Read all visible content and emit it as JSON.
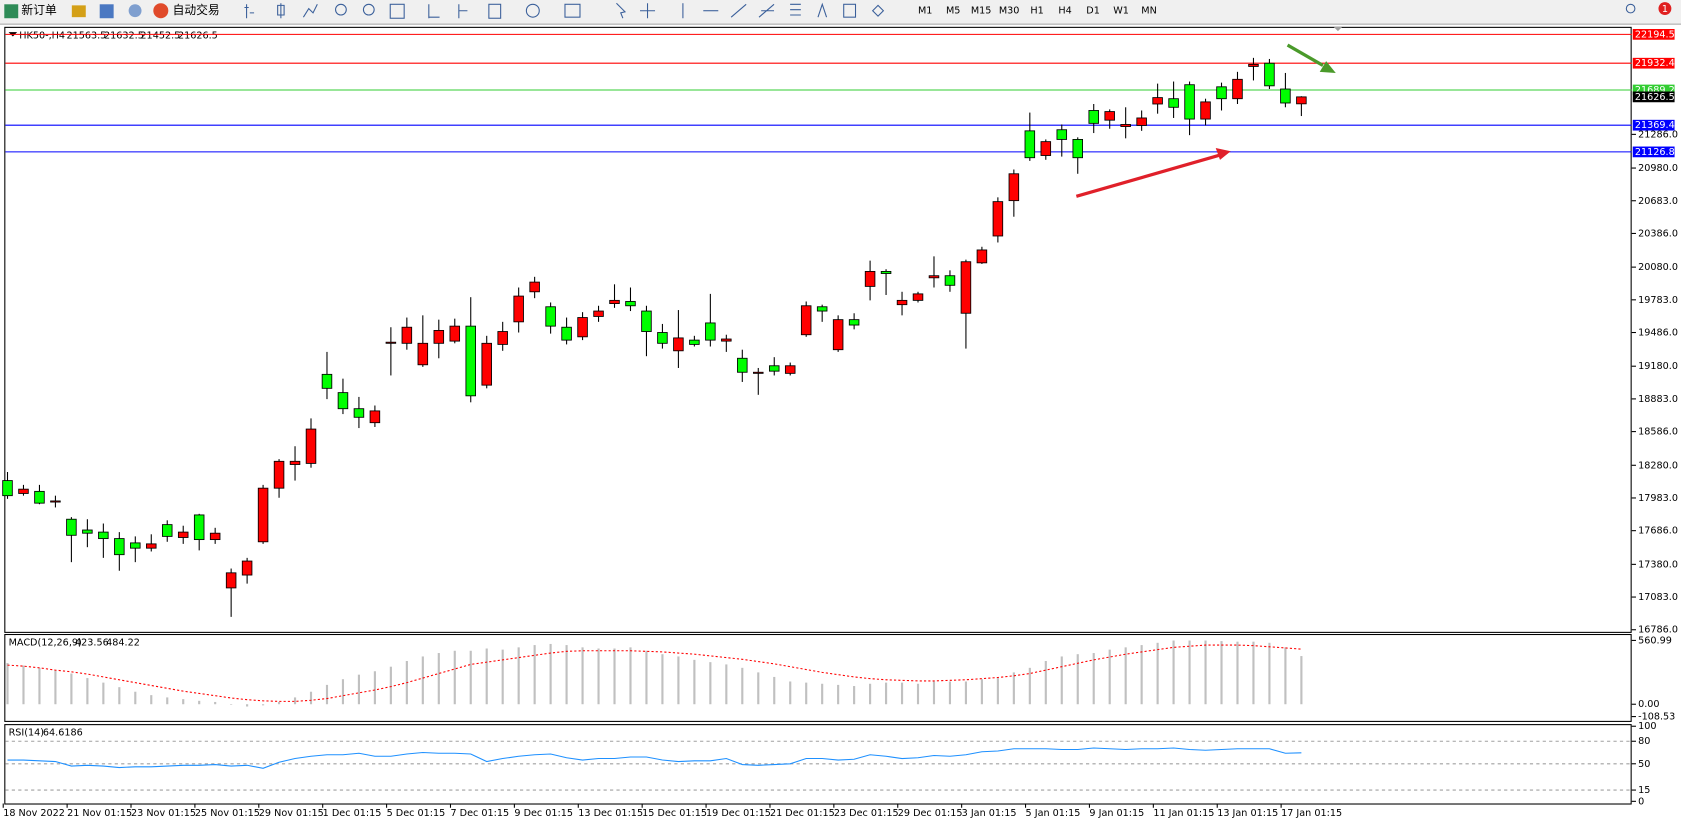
{
  "toolbar": {
    "new_order": "新订单",
    "auto_trading": "自动交易",
    "timeframes": [
      "M1",
      "M5",
      "M15",
      "M30",
      "H1",
      "H4",
      "D1",
      "W1",
      "MN"
    ]
  },
  "notifications": 1,
  "chart_data": [
    {
      "type": "candlestick",
      "title": "HK50-,H4",
      "categories": [
        "18 Nov 2022",
        null,
        null,
        null,
        "21 Nov 01:15",
        null,
        null,
        null,
        "23 Nov 01:15",
        null,
        null,
        null,
        "25 Nov 01:15",
        null,
        null,
        null,
        "29 Nov 01:15",
        null,
        null,
        null,
        "1 Dec 01:15",
        null,
        null,
        null,
        "5 Dec 01:15",
        null,
        null,
        null,
        "7 Dec 01:15",
        null,
        null,
        null,
        "9 Dec 01:15",
        null,
        null,
        null,
        "13 Dec 01:15",
        null,
        null,
        null,
        "15 Dec 01:15",
        null,
        null,
        null,
        "19 Dec 01:15",
        null,
        null,
        null,
        "21 Dec 01:15",
        null,
        null,
        null,
        "23 Dec 01:15",
        null,
        null,
        null,
        "29 Dec 01:15",
        null,
        null,
        null,
        "3 Jan 01:15",
        null,
        null,
        null,
        "5 Jan 01:15",
        null,
        null,
        null,
        "9 Jan 01:15",
        null,
        null,
        null,
        "11 Jan 01:15",
        null,
        null,
        null,
        "13 Jan 01:15",
        null,
        null,
        null,
        "17 Jan 01:15",
        null
      ],
      "open": [
        18141,
        18024,
        18043,
        17946,
        17790,
        17692,
        17673,
        17614,
        17575,
        17527,
        17741,
        17624,
        17829,
        17605,
        17166,
        17283,
        17585,
        18072,
        18287,
        18297,
        19106,
        18940,
        18794,
        18667,
        19388,
        19388,
        19193,
        19388,
        19408,
        19544,
        19008,
        19378,
        19583,
        19856,
        19720,
        19534,
        19447,
        19632,
        19749,
        19768,
        19681,
        19486,
        19320,
        19417,
        19573,
        19408,
        19252,
        19115,
        19184,
        19115,
        19466,
        19720,
        19330,
        19603,
        19905,
        20041,
        19739,
        19778,
        19983,
        20002,
        19661,
        20119,
        20363,
        20684,
        21318,
        21094,
        21328,
        21240,
        21503,
        21415,
        21357,
        21367,
        21562,
        21610,
        21737,
        21425,
        21718,
        21610,
        21903,
        21932,
        21698,
        21563.5
      ],
      "high": [
        18219,
        18102,
        18102,
        18004,
        17809,
        17790,
        17751,
        17673,
        17634,
        17653,
        17780,
        17731,
        17839,
        17712,
        17342,
        17439,
        18102,
        18336,
        18453,
        18706,
        19310,
        19067,
        18901,
        18823,
        19534,
        19622,
        19642,
        19603,
        19612,
        19807,
        19456,
        19583,
        19895,
        19992,
        19759,
        19622,
        19671,
        19729,
        19924,
        19895,
        19729,
        19564,
        19690,
        19456,
        19837,
        19466,
        19330,
        19164,
        19262,
        19213,
        19768,
        19739,
        19642,
        19661,
        20139,
        20061,
        19856,
        19856,
        20178,
        20051,
        20148,
        20265,
        20714,
        20967,
        21484,
        21240,
        21376,
        21259,
        21562,
        21513,
        21532,
        21503,
        21747,
        21766,
        21766,
        21610,
        21756,
        21854,
        21981,
        21971,
        21844,
        21632.5
      ],
      "low": [
        17975,
        18004,
        17926,
        17897,
        17400,
        17536,
        17439,
        17322,
        17400,
        17497,
        17585,
        17566,
        17507,
        17566,
        16903,
        17205,
        17566,
        17985,
        18141,
        18258,
        18881,
        18745,
        18618,
        18628,
        19096,
        19330,
        19174,
        19252,
        19388,
        18852,
        18979,
        19320,
        19486,
        19798,
        19476,
        19378,
        19417,
        19583,
        19710,
        19681,
        19271,
        19340,
        19164,
        19359,
        19359,
        19310,
        19037,
        18920,
        19096,
        19096,
        19447,
        19583,
        19310,
        19515,
        19778,
        19827,
        19642,
        19759,
        19895,
        19856,
        19340,
        20109,
        20304,
        20538,
        21045,
        21055,
        21084,
        20928,
        21298,
        21337,
        21250,
        21318,
        21474,
        21435,
        21279,
        21367,
        21503,
        21562,
        21776,
        21698,
        21532,
        21452.5
      ],
      "close": [
        18004,
        18063,
        17936,
        17956,
        17644,
        17663,
        17614,
        17468,
        17527,
        17566,
        17634,
        17673,
        17605,
        17663,
        17303,
        17410,
        18072,
        18316,
        18316,
        18609,
        18979,
        18794,
        18716,
        18774,
        19398,
        19534,
        19388,
        19505,
        19544,
        18911,
        19388,
        19495,
        19817,
        19944,
        19544,
        19417,
        19622,
        19681,
        19778,
        19729,
        19495,
        19388,
        19437,
        19378,
        19417,
        19427,
        19125,
        19125,
        19135,
        19184,
        19729,
        19681,
        19603,
        19554,
        20041,
        20022,
        19778,
        19837,
        20002,
        19915,
        20129,
        20236,
        20675,
        20928,
        21074,
        21220,
        21240,
        21074,
        21386,
        21493,
        21376,
        21435,
        21620,
        21532,
        21425,
        21581,
        21610,
        21786,
        21922,
        21727,
        21571,
        21626.5
      ],
      "up_color": "#ff0000",
      "down_color": "#00ff00",
      "ylim": [
        16767,
        22263
      ],
      "yticks": [
        {
          "value": 16786,
          "label": "16786.0"
        },
        {
          "value": 17083,
          "label": "17083.0"
        },
        {
          "value": 17380,
          "label": "17380.0"
        },
        {
          "value": 17686,
          "label": "17686.0"
        },
        {
          "value": 17983,
          "label": "17983.0"
        },
        {
          "value": 18280,
          "label": "18280.0"
        },
        {
          "value": 18586,
          "label": "18586.0"
        },
        {
          "value": 18883,
          "label": "18883.0"
        },
        {
          "value": 19180,
          "label": "19180.0"
        },
        {
          "value": 19486,
          "label": "19486.0"
        },
        {
          "value": 19783,
          "label": "19783.0"
        },
        {
          "value": 20080,
          "label": "20080.0"
        },
        {
          "value": 20386,
          "label": "20386.0"
        },
        {
          "value": 20683,
          "label": "20683.0"
        },
        {
          "value": 20980,
          "label": "20980.0"
        },
        {
          "value": 21286,
          "label": "21286.0"
        }
      ],
      "levels": [
        {
          "value": 22194.5,
          "color": "#ff0000"
        },
        {
          "value": 21932.4,
          "color": "#ff0000"
        },
        {
          "value": 21689.2,
          "color": "#32cd32"
        },
        {
          "value": 21369.4,
          "color": "#0000ff"
        },
        {
          "value": 21126.8,
          "color": "#0000ff"
        }
      ]
    },
    {
      "type": "macd",
      "title": "MACD(12,26,9)",
      "main": [
        362,
        340,
        320,
        300,
        270,
        230,
        190,
        150,
        110,
        80,
        60,
        45,
        30,
        20,
        -5,
        -20,
        -10,
        20,
        60,
        110,
        170,
        220,
        260,
        290,
        330,
        380,
        420,
        450,
        470,
        470,
        490,
        480,
        500,
        520,
        530,
        520,
        500,
        490,
        490,
        500,
        470,
        440,
        420,
        390,
        370,
        350,
        320,
        280,
        240,
        200,
        190,
        180,
        170,
        160,
        180,
        190,
        190,
        180,
        200,
        200,
        200,
        220,
        230,
        280,
        320,
        380,
        420,
        440,
        450,
        480,
        500,
        520,
        540,
        560,
        560,
        560,
        555,
        550,
        550,
        540,
        500,
        423.56
      ],
      "signal": [
        344,
        335,
        320,
        300,
        285,
        265,
        240,
        215,
        190,
        165,
        140,
        115,
        95,
        75,
        55,
        40,
        30,
        25,
        25,
        35,
        50,
        75,
        100,
        125,
        155,
        190,
        230,
        270,
        310,
        350,
        370,
        390,
        410,
        430,
        450,
        465,
        470,
        470,
        470,
        470,
        465,
        460,
        450,
        440,
        425,
        410,
        395,
        375,
        355,
        330,
        305,
        280,
        260,
        240,
        225,
        215,
        210,
        205,
        205,
        210,
        215,
        225,
        235,
        250,
        270,
        300,
        330,
        360,
        390,
        415,
        440,
        460,
        480,
        500,
        510,
        520,
        520,
        520,
        515,
        505,
        495,
        484.22
      ],
      "hist_color": "#c0c0c0",
      "signal_color": "#ff0000",
      "ylim": [
        -108.53,
        560.99
      ],
      "yticks": [
        -108.53,
        {
          "value": 0,
          "label": "0.00"
        },
        560.99
      ]
    },
    {
      "type": "line",
      "title": "RSI(14)",
      "values": [
        55,
        55,
        54,
        53,
        47,
        48,
        47,
        45,
        46,
        46,
        47,
        48,
        48,
        49,
        47,
        48,
        44,
        52,
        57,
        60,
        62,
        62,
        64,
        60,
        60,
        63,
        65,
        64,
        64,
        63,
        53,
        57,
        60,
        62,
        63,
        58,
        55,
        57,
        57,
        59,
        59,
        55,
        53,
        54,
        54,
        57,
        49,
        48,
        49,
        50,
        57,
        57,
        55,
        56,
        62,
        60,
        57,
        58,
        61,
        60,
        62,
        66,
        67,
        70,
        70,
        70,
        69,
        69,
        71,
        70,
        69,
        70,
        70,
        71,
        69,
        68,
        69,
        70,
        70,
        70,
        64,
        64.6186
      ],
      "color": "#1e90ff",
      "ylim": [
        0,
        100
      ],
      "yticks": [
        0,
        15,
        50,
        80,
        100
      ],
      "levels": [
        15,
        50,
        80
      ]
    }
  ]
}
